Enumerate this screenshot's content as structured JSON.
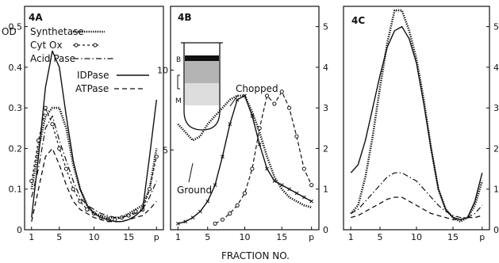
{
  "figure": {
    "xaxis_label": "FRACTION NO.",
    "colors": {
      "ink": "#111111",
      "paper": "#ffffff"
    }
  },
  "chart_data": [
    {
      "panel": "4A",
      "type": "line",
      "ylabel": "OD",
      "xlim": [
        0,
        20
      ],
      "ylim": [
        0,
        0.55
      ],
      "xticks": [
        "1",
        "5",
        "10",
        "15",
        "p"
      ],
      "yticks": [
        "0",
        "0.1",
        "0.2",
        "0.3",
        "0.4",
        "0.5"
      ],
      "legend": [
        {
          "name": "Synthetase",
          "sample": "dotted"
        },
        {
          "name": "Cyt Ox",
          "sample": "circles"
        },
        {
          "name": "Acid Pase",
          "sample": "dash-dot"
        },
        {
          "name": "IDPase",
          "sample": "solid"
        },
        {
          "name": "ATPase",
          "sample": "dashed"
        }
      ],
      "series": [
        {
          "name": "Synthetase",
          "style": "dotted",
          "points": [
            [
              1,
              0.1
            ],
            [
              2,
              0.2
            ],
            [
              3,
              0.28
            ],
            [
              4,
              0.3
            ],
            [
              5,
              0.3
            ],
            [
              6,
              0.25
            ],
            [
              7,
              0.16
            ],
            [
              8,
              0.1
            ],
            [
              9,
              0.06
            ],
            [
              10,
              0.04
            ],
            [
              11,
              0.035
            ],
            [
              12,
              0.03
            ],
            [
              13,
              0.03
            ],
            [
              14,
              0.03
            ],
            [
              15,
              0.04
            ],
            [
              16,
              0.05
            ],
            [
              17,
              0.06
            ],
            [
              18,
              0.1
            ],
            [
              19,
              0.2
            ]
          ]
        },
        {
          "name": "Cyt Ox",
          "style": "circles",
          "points": [
            [
              1,
              0.12
            ],
            [
              2,
              0.22
            ],
            [
              3,
              0.3
            ],
            [
              4,
              0.26
            ],
            [
              5,
              0.2
            ],
            [
              6,
              0.15
            ],
            [
              7,
              0.1
            ],
            [
              8,
              0.07
            ],
            [
              9,
              0.05
            ],
            [
              10,
              0.04
            ],
            [
              11,
              0.03
            ],
            [
              12,
              0.025
            ],
            [
              13,
              0.025
            ],
            [
              14,
              0.03
            ],
            [
              15,
              0.035
            ],
            [
              16,
              0.045
            ],
            [
              17,
              0.05
            ],
            [
              18,
              0.1
            ],
            [
              19,
              0.18
            ]
          ]
        },
        {
          "name": "Acid Pase",
          "style": "dash-dot",
          "points": [
            [
              1,
              0.08
            ],
            [
              2,
              0.15
            ],
            [
              3,
              0.25
            ],
            [
              4,
              0.28
            ],
            [
              5,
              0.22
            ],
            [
              6,
              0.17
            ],
            [
              7,
              0.12
            ],
            [
              8,
              0.08
            ],
            [
              9,
              0.06
            ],
            [
              10,
              0.05
            ],
            [
              11,
              0.04
            ],
            [
              12,
              0.035
            ],
            [
              13,
              0.03
            ],
            [
              14,
              0.03
            ],
            [
              15,
              0.035
            ],
            [
              16,
              0.04
            ],
            [
              17,
              0.05
            ],
            [
              18,
              0.08
            ],
            [
              19,
              0.12
            ]
          ]
        },
        {
          "name": "IDPase",
          "style": "solid",
          "points": [
            [
              1,
              0.03
            ],
            [
              2,
              0.18
            ],
            [
              3,
              0.35
            ],
            [
              4,
              0.44
            ],
            [
              5,
              0.4
            ],
            [
              6,
              0.28
            ],
            [
              7,
              0.17
            ],
            [
              8,
              0.1
            ],
            [
              9,
              0.06
            ],
            [
              10,
              0.04
            ],
            [
              11,
              0.03
            ],
            [
              12,
              0.025
            ],
            [
              13,
              0.02
            ],
            [
              14,
              0.02
            ],
            [
              15,
              0.025
            ],
            [
              16,
              0.035
            ],
            [
              17,
              0.05
            ],
            [
              18,
              0.18
            ],
            [
              19,
              0.32
            ]
          ]
        },
        {
          "name": "ATPase",
          "style": "dashed",
          "points": [
            [
              1,
              0.02
            ],
            [
              2,
              0.1
            ],
            [
              3,
              0.18
            ],
            [
              4,
              0.2
            ],
            [
              5,
              0.16
            ],
            [
              6,
              0.11
            ],
            [
              7,
              0.07
            ],
            [
              8,
              0.05
            ],
            [
              9,
              0.04
            ],
            [
              10,
              0.03
            ],
            [
              11,
              0.025
            ],
            [
              12,
              0.02
            ],
            [
              13,
              0.02
            ],
            [
              14,
              0.02
            ],
            [
              15,
              0.025
            ],
            [
              16,
              0.03
            ],
            [
              17,
              0.035
            ],
            [
              18,
              0.05
            ],
            [
              19,
              0.07
            ]
          ]
        }
      ]
    },
    {
      "panel": "4B",
      "type": "line",
      "xlim": [
        0,
        20
      ],
      "ylim_left": [
        0,
        14
      ],
      "ylim_right": [
        0,
        5.5
      ],
      "xticks": [
        "1",
        "5",
        "10",
        "15",
        "p"
      ],
      "yticks_left": [
        "5",
        "10"
      ],
      "yticks_right": [
        "0",
        "1",
        "2",
        "3",
        "4",
        "5"
      ],
      "annotations": [
        "Chopped",
        "Ground"
      ],
      "inset_labels": [
        "B",
        "M"
      ],
      "series": [
        {
          "name": "",
          "style": "dotted",
          "axis": "right",
          "points": [
            [
              1,
              2.6
            ],
            [
              2,
              2.4
            ],
            [
              3,
              2.2
            ],
            [
              4,
              2.3
            ],
            [
              5,
              2.6
            ],
            [
              6,
              2.8
            ],
            [
              7,
              3.0
            ],
            [
              8,
              3.2
            ],
            [
              9,
              3.3
            ],
            [
              10,
              3.3
            ],
            [
              11,
              2.9
            ],
            [
              12,
              2.4
            ],
            [
              13,
              1.8
            ],
            [
              14,
              1.3
            ],
            [
              15,
              1.0
            ],
            [
              16,
              0.8
            ],
            [
              17,
              0.7
            ],
            [
              18,
              0.6
            ],
            [
              19,
              0.55
            ]
          ]
        },
        {
          "name": "",
          "style": "crosses",
          "axis": "right",
          "points": [
            [
              1,
              0.15
            ],
            [
              2,
              0.2
            ],
            [
              3,
              0.3
            ],
            [
              4,
              0.45
            ],
            [
              5,
              0.7
            ],
            [
              6,
              1.1
            ],
            [
              7,
              1.8
            ],
            [
              8,
              2.6
            ],
            [
              9,
              3.2
            ],
            [
              10,
              3.3
            ],
            [
              11,
              2.8
            ],
            [
              12,
              2.1
            ],
            [
              13,
              1.5
            ],
            [
              14,
              1.2
            ],
            [
              15,
              1.1
            ],
            [
              16,
              1.0
            ],
            [
              17,
              0.9
            ],
            [
              18,
              0.8
            ],
            [
              19,
              0.7
            ]
          ]
        },
        {
          "name": "",
          "style": "circles-dashed",
          "axis": "right",
          "points": [
            [
              6,
              0.15
            ],
            [
              7,
              0.25
            ],
            [
              8,
              0.4
            ],
            [
              9,
              0.6
            ],
            [
              10,
              0.9
            ],
            [
              11,
              1.5
            ],
            [
              12,
              2.5
            ],
            [
              13,
              3.3
            ],
            [
              14,
              3.1
            ],
            [
              15,
              3.4
            ],
            [
              16,
              3.0
            ],
            [
              17,
              2.3
            ],
            [
              18,
              1.5
            ],
            [
              19,
              1.1
            ]
          ]
        }
      ]
    },
    {
      "panel": "4C",
      "type": "line",
      "xlim": [
        0,
        20
      ],
      "ylim": [
        0,
        5.5
      ],
      "xticks": [
        "1",
        "5",
        "10",
        "15",
        "p"
      ],
      "yticks_right": [
        "0",
        "1",
        "2",
        "3",
        "4",
        "5"
      ],
      "series": [
        {
          "name": "",
          "style": "dotted",
          "points": [
            [
              1,
              0.4
            ],
            [
              2,
              0.6
            ],
            [
              3,
              1.3
            ],
            [
              4,
              2.3
            ],
            [
              5,
              3.5
            ],
            [
              6,
              4.6
            ],
            [
              7,
              5.4
            ],
            [
              8,
              5.4
            ],
            [
              9,
              4.9
            ],
            [
              10,
              4.2
            ],
            [
              11,
              3.2
            ],
            [
              12,
              2.0
            ],
            [
              13,
              1.0
            ],
            [
              14,
              0.5
            ],
            [
              15,
              0.3
            ],
            [
              16,
              0.2
            ],
            [
              17,
              0.3
            ],
            [
              18,
              0.6
            ],
            [
              19,
              1.2
            ]
          ]
        },
        {
          "name": "",
          "style": "solid",
          "points": [
            [
              1,
              1.4
            ],
            [
              2,
              1.6
            ],
            [
              3,
              2.2
            ],
            [
              4,
              3.0
            ],
            [
              5,
              3.8
            ],
            [
              6,
              4.5
            ],
            [
              7,
              4.9
            ],
            [
              8,
              5.0
            ],
            [
              9,
              4.7
            ],
            [
              10,
              4.1
            ],
            [
              11,
              3.1
            ],
            [
              12,
              2.0
            ],
            [
              13,
              1.0
            ],
            [
              14,
              0.5
            ],
            [
              15,
              0.3
            ],
            [
              16,
              0.25
            ],
            [
              17,
              0.3
            ],
            [
              18,
              0.7
            ],
            [
              19,
              1.4
            ]
          ]
        },
        {
          "name": "",
          "style": "dash-dot",
          "points": [
            [
              1,
              0.4
            ],
            [
              2,
              0.5
            ],
            [
              3,
              0.7
            ],
            [
              4,
              0.9
            ],
            [
              5,
              1.1
            ],
            [
              6,
              1.3
            ],
            [
              7,
              1.4
            ],
            [
              8,
              1.4
            ],
            [
              9,
              1.3
            ],
            [
              10,
              1.2
            ],
            [
              11,
              1.0
            ],
            [
              12,
              0.8
            ],
            [
              13,
              0.6
            ],
            [
              14,
              0.45
            ],
            [
              15,
              0.35
            ],
            [
              16,
              0.3
            ],
            [
              17,
              0.3
            ],
            [
              18,
              0.4
            ],
            [
              19,
              0.6
            ]
          ]
        },
        {
          "name": "",
          "style": "dashed",
          "points": [
            [
              1,
              0.3
            ],
            [
              2,
              0.35
            ],
            [
              3,
              0.45
            ],
            [
              4,
              0.55
            ],
            [
              5,
              0.65
            ],
            [
              6,
              0.75
            ],
            [
              7,
              0.8
            ],
            [
              8,
              0.8
            ],
            [
              9,
              0.7
            ],
            [
              10,
              0.6
            ],
            [
              11,
              0.5
            ],
            [
              12,
              0.4
            ],
            [
              13,
              0.35
            ],
            [
              14,
              0.3
            ],
            [
              15,
              0.25
            ],
            [
              16,
              0.25
            ],
            [
              17,
              0.3
            ],
            [
              18,
              0.3
            ],
            [
              19,
              0.35
            ]
          ]
        }
      ]
    }
  ]
}
